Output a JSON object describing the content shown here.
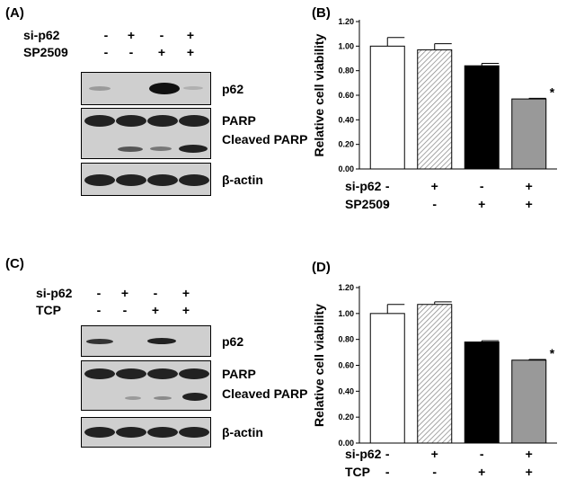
{
  "panels": {
    "A": {
      "letter": "(A)",
      "rows": [
        {
          "label": "si-p62",
          "signs": [
            "-",
            "+",
            "-",
            "+"
          ]
        },
        {
          "label": "SP2509",
          "signs": [
            "-",
            "-",
            "+",
            "+"
          ]
        }
      ],
      "blots": [
        {
          "label": "p62"
        },
        {
          "label": "PARP",
          "sublabel": "Cleaved PARP"
        },
        {
          "label": "β-actin"
        }
      ]
    },
    "B": {
      "letter": "(B)",
      "chart_data": {
        "type": "bar",
        "ylabel": "Relative cell viability",
        "ylim": [
          0,
          1.2
        ],
        "yticks": [
          "0.00",
          "0.20",
          "0.40",
          "0.60",
          "0.80",
          "1.00",
          "1.20"
        ],
        "values": [
          1.0,
          0.97,
          0.84,
          0.57
        ],
        "errors": [
          0.07,
          0.05,
          0.02,
          0.005
        ],
        "bar_colors": [
          "#ffffff",
          "hatched",
          "#000000",
          "#999999"
        ],
        "significance": [
          "",
          "",
          "",
          "*"
        ],
        "condition_rows": [
          {
            "label": "si-p62",
            "signs": [
              "-",
              "+",
              "-",
              "+"
            ]
          },
          {
            "label": "SP2509",
            "signs": [
              "-",
              "-",
              "+",
              "+"
            ]
          }
        ]
      }
    },
    "C": {
      "letter": "(C)",
      "rows": [
        {
          "label": "si-p62",
          "signs": [
            "-",
            "+",
            "-",
            "+"
          ]
        },
        {
          "label": "TCP",
          "signs": [
            "-",
            "-",
            "+",
            "+"
          ]
        }
      ],
      "blots": [
        {
          "label": "p62"
        },
        {
          "label": "PARP",
          "sublabel": "Cleaved PARP"
        },
        {
          "label": "β-actin"
        }
      ]
    },
    "D": {
      "letter": "(D)",
      "chart_data": {
        "type": "bar",
        "ylabel": "Relative cell viability",
        "ylim": [
          0,
          1.2
        ],
        "yticks": [
          "0.00",
          "0.20",
          "0.40",
          "0.60",
          "0.80",
          "1.00",
          "1.20"
        ],
        "values": [
          1.0,
          1.07,
          0.78,
          0.64
        ],
        "errors": [
          0.07,
          0.02,
          0.01,
          0.005
        ],
        "bar_colors": [
          "#ffffff",
          "hatched",
          "#000000",
          "#999999"
        ],
        "significance": [
          "",
          "",
          "",
          "*"
        ],
        "condition_rows": [
          {
            "label": "si-p62",
            "signs": [
              "-",
              "+",
              "-",
              "+"
            ]
          },
          {
            "label": "TCP",
            "signs": [
              "-",
              "-",
              "+",
              "+"
            ]
          }
        ]
      }
    }
  }
}
